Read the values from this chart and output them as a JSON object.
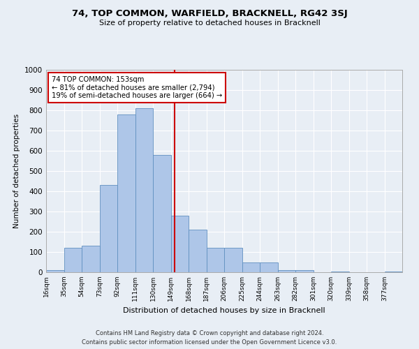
{
  "title": "74, TOP COMMON, WARFIELD, BRACKNELL, RG42 3SJ",
  "subtitle": "Size of property relative to detached houses in Bracknell",
  "xlabel": "Distribution of detached houses by size in Bracknell",
  "ylabel": "Number of detached properties",
  "footer_line1": "Contains HM Land Registry data © Crown copyright and database right 2024.",
  "footer_line2": "Contains public sector information licensed under the Open Government Licence v3.0.",
  "annotation_title": "74 TOP COMMON: 153sqm",
  "annotation_line1": "← 81% of detached houses are smaller (2,794)",
  "annotation_line2": "19% of semi-detached houses are larger (664) →",
  "marker_value": 153,
  "bin_edges": [
    16,
    35,
    54,
    73,
    92,
    111,
    130,
    149,
    168,
    187,
    206,
    225,
    244,
    263,
    282,
    301,
    320,
    339,
    358,
    377,
    396
  ],
  "bar_heights": [
    10,
    120,
    130,
    430,
    780,
    810,
    580,
    280,
    210,
    120,
    120,
    50,
    50,
    10,
    10,
    0,
    5,
    0,
    0,
    5
  ],
  "bar_color": "#aec6e8",
  "bar_edge_color": "#6090c0",
  "vline_color": "#cc0000",
  "bg_color": "#e8eef5",
  "grid_color": "#ffffff",
  "ylim": [
    0,
    1000
  ],
  "yticks": [
    0,
    100,
    200,
    300,
    400,
    500,
    600,
    700,
    800,
    900,
    1000
  ]
}
